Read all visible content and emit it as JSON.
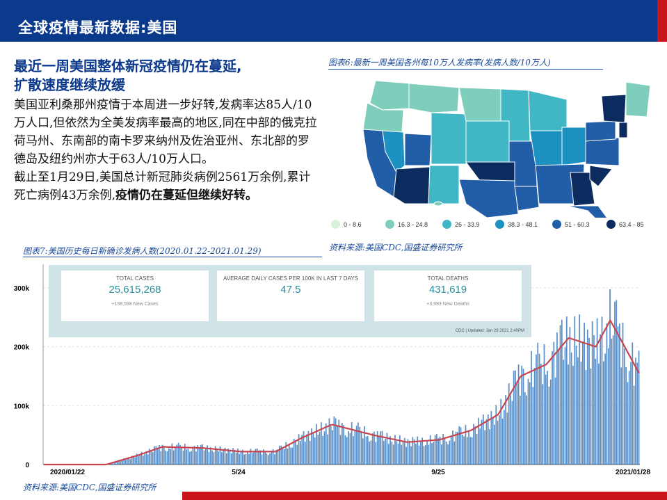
{
  "header": {
    "title": "全球疫情最新数据:美国"
  },
  "headline": {
    "line1": "最近一周美国整体新冠疫情仍在蔓延,",
    "line2": "扩散速度继续放缓"
  },
  "body": {
    "p1": "美国亚利桑那州疫情于本周进一步好转,发病率达85人/10万人口,但依然为全美发病率最高的地区,同在中部的俄克拉荷马州、东南部的南卡罗来纳州及佐治亚州、东北部的罗德岛及纽约州亦大于63人/10万人口。",
    "p2_normal": "截止至1月29日,美国总计新冠肺炎病例2561万余例,累计死亡病例43万余例,",
    "p2_bold": "疫情仍在蔓延但继续好转。"
  },
  "figure6": {
    "caption": "图表6:最新一周美国各州每10万人发病率(发病人数/10万人)",
    "source": "资料来源:美国CDC,国盛证券研究所",
    "legend": [
      {
        "label": "0 - 8.6",
        "color": "#d9f2dd"
      },
      {
        "label": "16.3 - 24.8",
        "color": "#7fcdbb"
      },
      {
        "label": "26 - 33.9",
        "color": "#41b6c4"
      },
      {
        "label": "38.3 - 48.1",
        "color": "#1d91c0"
      },
      {
        "label": "51 - 60.3",
        "color": "#225ea8"
      },
      {
        "label": "63.4 - 85",
        "color": "#0c2c60"
      }
    ]
  },
  "figure7": {
    "caption": "图表7:美国历史每日新确诊发病人数(2020.01.22-2021.01.29)",
    "source": "资料来源:美国CDC,国盛证券研究所",
    "panel": {
      "total_cases_label": "TOTAL CASES",
      "total_cases_value": "25,615,268",
      "total_cases_sub": "+158,598 New Cases",
      "avg_label": "AVERAGE DAILY CASES PER 100K IN LAST 7 DAYS",
      "avg_value": "47.5",
      "deaths_label": "TOTAL DEATHS",
      "deaths_value": "431,619",
      "deaths_sub": "+3,993 New Deaths",
      "update": "CDC | Updated: Jan 29 2021 2:40PM"
    }
  },
  "chart_data": {
    "type": "bar",
    "title": "",
    "xlabel": "",
    "ylabel": "",
    "y_ticks": [
      "0",
      "100k",
      "200k",
      "300k"
    ],
    "x_ticks": [
      "2020/01/22",
      "5/24",
      "9/25",
      "2021/01/28"
    ],
    "ylim": [
      0,
      340000
    ],
    "bar_color": "#5b8fc7",
    "line_color": "#c8454f",
    "series": [
      {
        "values_note": "daily new cases approx, monthly anchors",
        "x": [
          "2020/01/22",
          "2020/03/01",
          "2020/03/20",
          "2020/04/05",
          "2020/05/01",
          "2020/05/24",
          "2020/06/15",
          "2020/07/01",
          "2020/07/20",
          "2020/08/15",
          "2020/09/05",
          "2020/09/25",
          "2020/10/15",
          "2020/11/01",
          "2020/11/15",
          "2020/12/01",
          "2020/12/15",
          "2021/01/01",
          "2021/01/10",
          "2021/01/20",
          "2021/01/28"
        ],
        "values": [
          0,
          0,
          15000,
          30000,
          28000,
          22000,
          22000,
          45000,
          68000,
          50000,
          38000,
          42000,
          58000,
          85000,
          150000,
          170000,
          215000,
          200000,
          245000,
          195000,
          155000
        ]
      }
    ]
  }
}
